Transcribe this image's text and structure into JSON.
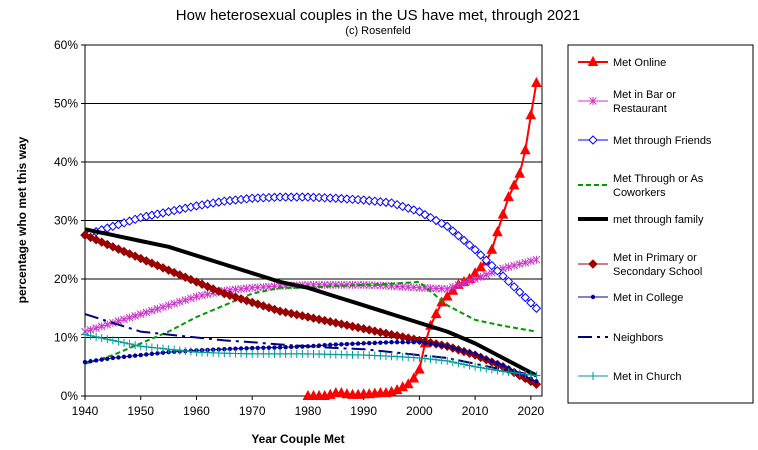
{
  "chart_data": {
    "type": "line",
    "title": "How heterosexual couples in the US have met, through 2021",
    "subtitle": "(c) Rosenfeld",
    "xlabel": "Year Couple Met",
    "ylabel": "percentage who met this way",
    "xlim": [
      1940,
      2022
    ],
    "ylim": [
      0,
      60
    ],
    "xticks": [
      "1940",
      "1950",
      "1960",
      "1970",
      "1980",
      "1990",
      "2000",
      "2010",
      "2020"
    ],
    "yticks": [
      "0%",
      "10%",
      "20%",
      "30%",
      "40%",
      "50%",
      "60%"
    ],
    "grid": "horizontal",
    "legend_position": "right",
    "series": [
      {
        "name": "Met Online",
        "color": "#ff0000",
        "marker": "triangle",
        "dash": "solid",
        "width": 2,
        "x": [
          1980,
          1981,
          1982,
          1983,
          1984,
          1985,
          1986,
          1987,
          1988,
          1989,
          1990,
          1991,
          1992,
          1993,
          1994,
          1995,
          1996,
          1997,
          1998,
          1999,
          2000,
          2001,
          2002,
          2003,
          2004,
          2005,
          2006,
          2007,
          2008,
          2009,
          2010,
          2011,
          2012,
          2013,
          2014,
          2015,
          2016,
          2017,
          2018,
          2019,
          2020,
          2021
        ],
        "y": [
          0,
          0,
          0,
          0,
          0.2,
          0.5,
          0.5,
          0.3,
          0.2,
          0.2,
          0.3,
          0.3,
          0.4,
          0.5,
          0.5,
          0.7,
          1,
          1.5,
          2,
          3,
          4.5,
          9,
          12,
          14,
          16,
          17,
          18,
          19,
          19.5,
          20,
          21,
          22,
          23,
          25,
          28,
          31,
          34,
          36,
          38,
          42,
          48,
          53.5
        ]
      },
      {
        "name": "Met in Bar or Restaurant",
        "color": "#cc33cc",
        "marker": "star",
        "dash": "solid",
        "width": 1,
        "x": [
          1940,
          1945,
          1950,
          1955,
          1960,
          1965,
          1970,
          1975,
          1980,
          1985,
          1990,
          1995,
          2000,
          2005,
          2010,
          2015,
          2021
        ],
        "y": [
          11,
          12.5,
          14,
          15.5,
          17,
          18,
          18.5,
          18.8,
          19,
          19,
          19,
          18.8,
          18.5,
          18.3,
          20,
          21.8,
          23.3
        ]
      },
      {
        "name": "Met through Friends",
        "color": "#0000ff",
        "marker": "diamond-open",
        "dash": "solid",
        "width": 1,
        "x": [
          1940,
          1945,
          1950,
          1955,
          1960,
          1965,
          1970,
          1975,
          1980,
          1985,
          1990,
          1995,
          2000,
          2005,
          2010,
          2015,
          2021
        ],
        "y": [
          27.5,
          29,
          30.5,
          31.5,
          32.5,
          33.3,
          33.8,
          34,
          34,
          33.8,
          33.5,
          33,
          31.5,
          29,
          25,
          20.5,
          15
        ]
      },
      {
        "name": "Met Through or As Coworkers",
        "color": "#009900",
        "marker": "none",
        "dash": "dashed",
        "width": 2,
        "x": [
          1940,
          1945,
          1950,
          1955,
          1960,
          1965,
          1970,
          1975,
          1980,
          1985,
          1990,
          1995,
          2000,
          2005,
          2010,
          2015,
          2021
        ],
        "y": [
          5.5,
          7,
          9,
          11,
          13.5,
          15.5,
          17.5,
          18.5,
          18.5,
          18.8,
          19,
          19.2,
          19.5,
          15.5,
          13,
          12,
          11
        ]
      },
      {
        "name": "met through family",
        "color": "#000000",
        "marker": "none",
        "dash": "solid",
        "width": 4,
        "x": [
          1940,
          1945,
          1950,
          1955,
          1960,
          1965,
          1970,
          1975,
          1980,
          1985,
          1990,
          1995,
          2000,
          2005,
          2010,
          2015,
          2021
        ],
        "y": [
          28.5,
          27.5,
          26.5,
          25.5,
          24,
          22.5,
          21,
          19.5,
          18.5,
          17,
          15.5,
          14,
          12.5,
          11,
          9,
          6.5,
          3.5
        ]
      },
      {
        "name": "Met in Primary or Secondary School",
        "color": "#990000",
        "marker": "diamond",
        "dash": "solid",
        "width": 1,
        "x": [
          1940,
          1945,
          1950,
          1955,
          1960,
          1965,
          1970,
          1975,
          1980,
          1985,
          1990,
          1995,
          2000,
          2005,
          2010,
          2015,
          2021
        ],
        "y": [
          27.5,
          25.5,
          23.5,
          21.5,
          19.5,
          17.5,
          16,
          14.5,
          13.5,
          12.5,
          11.5,
          10.5,
          9.5,
          8.5,
          7,
          5,
          2
        ]
      },
      {
        "name": "Met in College",
        "color": "#000099",
        "marker": "dot",
        "dash": "solid",
        "width": 1,
        "x": [
          1940,
          1945,
          1950,
          1955,
          1960,
          1965,
          1970,
          1975,
          1980,
          1985,
          1990,
          1995,
          2000,
          2005,
          2010,
          2015,
          2021
        ],
        "y": [
          5.8,
          6.5,
          7,
          7.5,
          7.8,
          8,
          8.2,
          8.3,
          8.5,
          8.8,
          9,
          9.2,
          9.2,
          8.5,
          7.2,
          5.2,
          2.5
        ]
      },
      {
        "name": "Neighbors",
        "color": "#000080",
        "marker": "none",
        "dash": "dashdot",
        "width": 2,
        "x": [
          1940,
          1945,
          1950,
          1955,
          1960,
          1965,
          1970,
          1975,
          1980,
          1985,
          1990,
          1995,
          2000,
          2005,
          2010,
          2015,
          2021
        ],
        "y": [
          14,
          12.5,
          11,
          10.5,
          10,
          9.5,
          9.2,
          8.8,
          8.5,
          8.2,
          8,
          7.5,
          7,
          6.5,
          5.5,
          4.5,
          3.5
        ]
      },
      {
        "name": "Met in Church",
        "color": "#009999",
        "marker": "plus",
        "dash": "solid",
        "width": 1,
        "x": [
          1940,
          1945,
          1950,
          1955,
          1960,
          1965,
          1970,
          1975,
          1980,
          1985,
          1990,
          1995,
          2000,
          2005,
          2010,
          2015,
          2021
        ],
        "y": [
          10.5,
          9.5,
          8.5,
          8,
          7.5,
          7.3,
          7.2,
          7.2,
          7.2,
          7.1,
          7,
          6.8,
          6.5,
          6,
          5,
          4.2,
          3.5
        ]
      }
    ]
  }
}
